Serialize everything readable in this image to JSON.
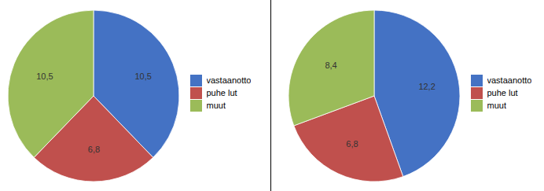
{
  "chart_data": [
    {
      "type": "pie",
      "categories": [
        "vastaanotto",
        "puhe lut",
        "muut"
      ],
      "values": [
        10.5,
        6.8,
        10.5
      ],
      "value_labels": [
        "10,5",
        "6,8",
        "10,5"
      ],
      "colors": [
        "#4472c4",
        "#c0504d",
        "#9bbb59"
      ],
      "data_labels": true,
      "legend": "right"
    },
    {
      "type": "pie",
      "categories": [
        "vastaanotto",
        "puhe lut",
        "muut"
      ],
      "values": [
        12.2,
        6.8,
        8.4
      ],
      "value_labels": [
        "12,2",
        "6,8",
        "8,4"
      ],
      "colors": [
        "#4472c4",
        "#c0504d",
        "#9bbb59"
      ],
      "data_labels": true,
      "legend": "right"
    }
  ]
}
